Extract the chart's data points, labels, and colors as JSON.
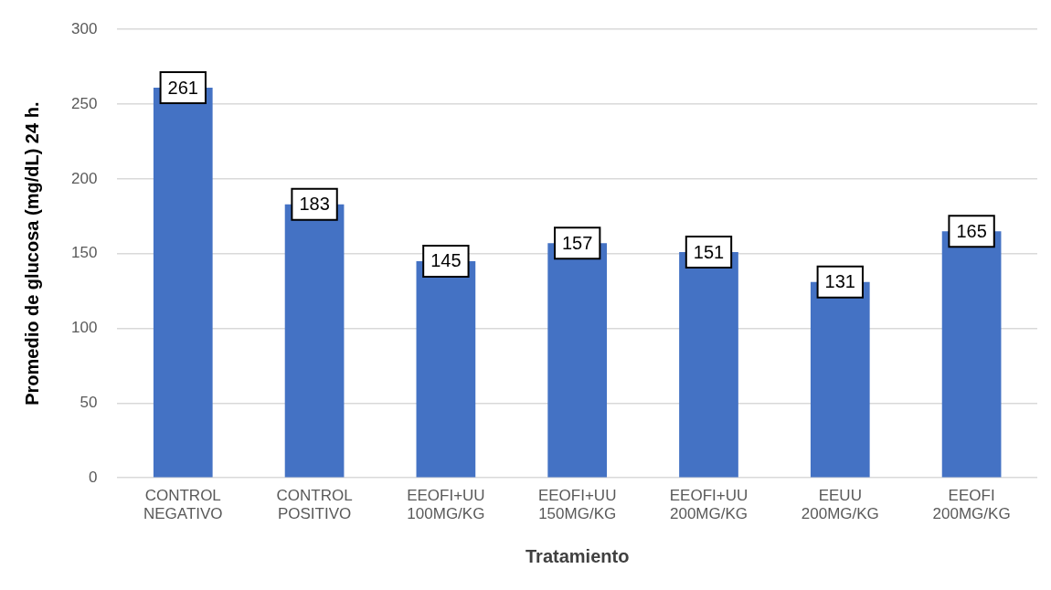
{
  "chart_data": {
    "type": "bar",
    "xlabel": "Tratamiento",
    "ylabel": "Promedio de glucosa (mg/dL) 24 h.",
    "categories": [
      "CONTROL NEGATIVO",
      "CONTROL POSITIVO",
      "EEOFI+UU 100MG/KG",
      "EEOFI+UU 150MG/KG",
      "EEOFI+UU 200MG/KG",
      "EEUU 200MG/KG",
      "EEOFI 200MG/KG"
    ],
    "values": [
      261,
      183,
      145,
      157,
      151,
      131,
      165
    ],
    "color": "#4472c4",
    "ylim": [
      0,
      300
    ],
    "yticks": [
      0,
      50,
      100,
      150,
      200,
      250,
      300
    ],
    "grid": "y",
    "data_labels": true
  }
}
